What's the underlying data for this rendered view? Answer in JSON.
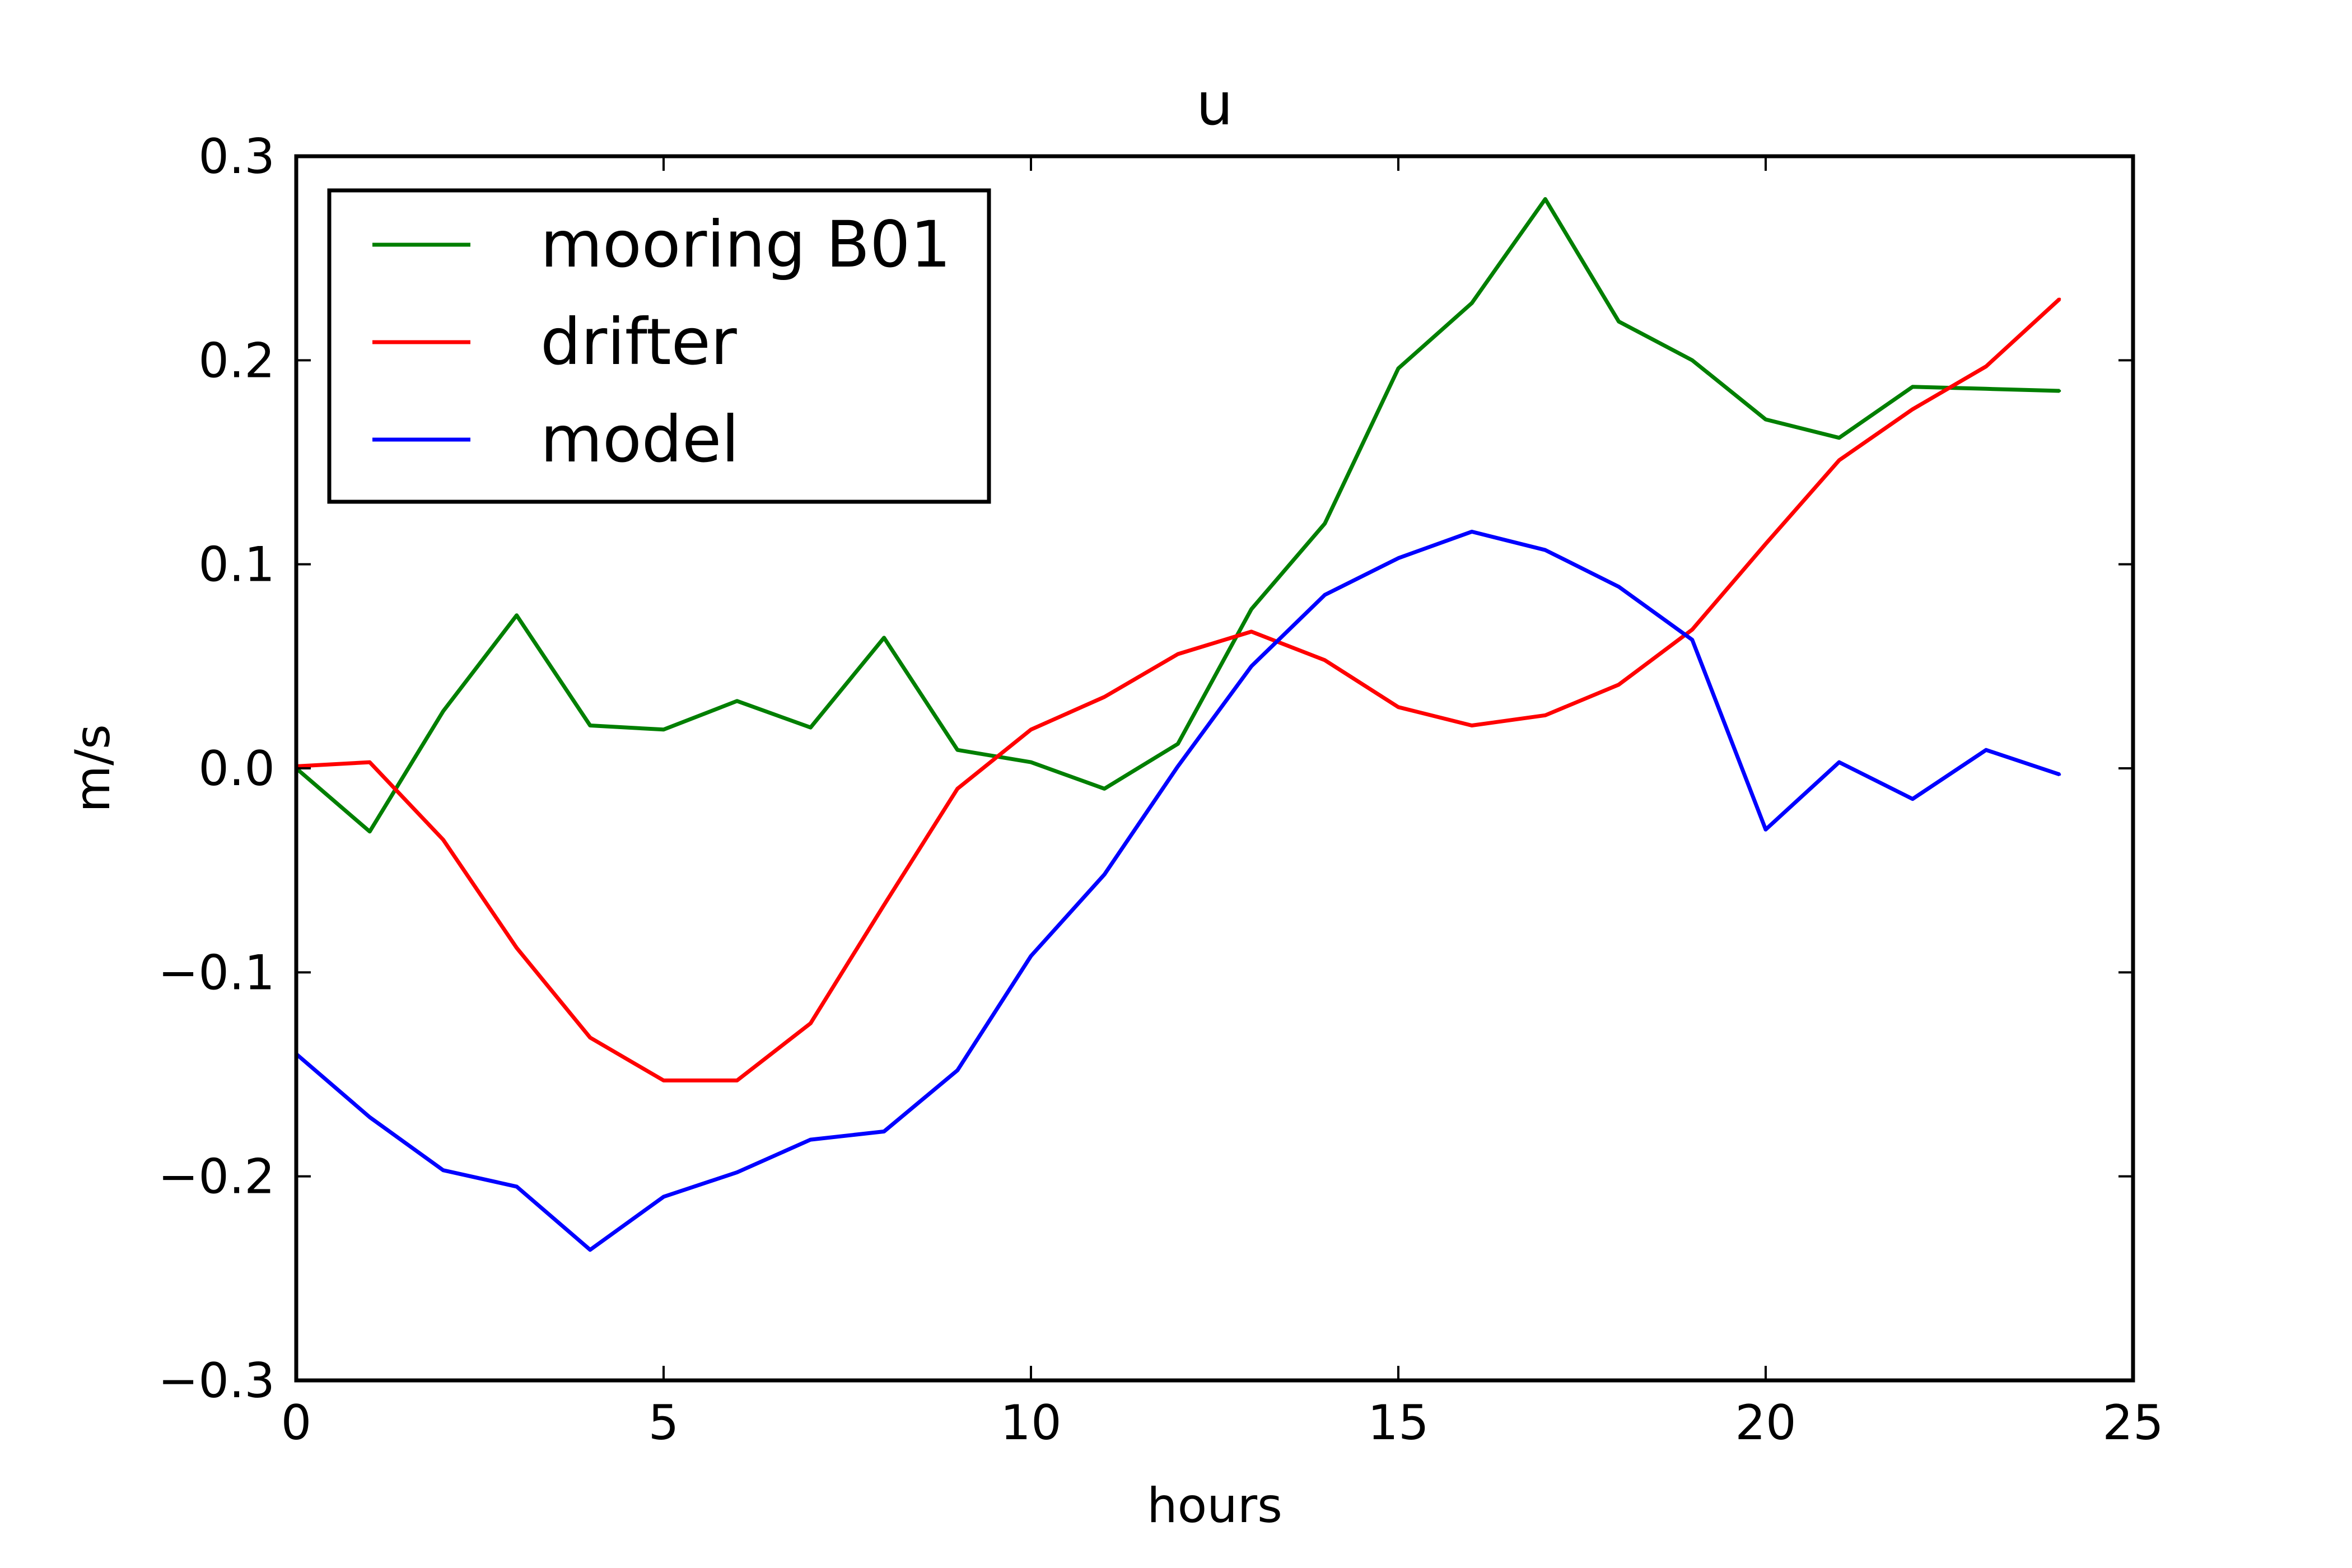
{
  "chart_data": {
    "type": "line",
    "title": "u",
    "xlabel": "hours",
    "ylabel": "m/s",
    "xlim": [
      0,
      25
    ],
    "ylim": [
      -0.3,
      0.3
    ],
    "xticks": [
      0,
      5,
      10,
      15,
      20,
      25
    ],
    "xtick_labels": [
      "0",
      "5",
      "10",
      "15",
      "20",
      "25"
    ],
    "yticks": [
      -0.3,
      -0.2,
      -0.1,
      0.0,
      0.1,
      0.2,
      0.3
    ],
    "ytick_labels": [
      "−0.3",
      "−0.2",
      "−0.1",
      "0.0",
      "0.1",
      "0.2",
      "0.3"
    ],
    "grid": false,
    "legend_position": "top-left",
    "x": [
      0,
      1,
      2,
      3,
      4,
      5,
      6,
      7,
      8,
      9,
      10,
      11,
      12,
      13,
      14,
      15,
      16,
      17,
      18,
      19,
      20,
      21,
      22,
      23,
      24
    ],
    "series": [
      {
        "name": "mooring B01",
        "color": "#007f00",
        "values": [
          0.0,
          -0.031,
          0.028,
          0.075,
          0.021,
          0.019,
          0.033,
          0.02,
          0.064,
          0.009,
          0.003,
          -0.01,
          0.012,
          0.078,
          0.12,
          0.196,
          0.228,
          0.279,
          0.219,
          0.2,
          0.171,
          0.162,
          0.187,
          0.186,
          0.185
        ]
      },
      {
        "name": "drifter",
        "color": "#ff0000",
        "values": [
          0.001,
          0.003,
          -0.035,
          -0.088,
          -0.132,
          -0.153,
          -0.153,
          -0.125,
          -0.067,
          -0.01,
          0.019,
          0.035,
          0.056,
          0.067,
          0.053,
          0.03,
          0.021,
          0.026,
          0.041,
          0.068,
          0.11,
          0.151,
          0.176,
          0.197,
          0.23
        ]
      },
      {
        "name": "model",
        "color": "#0000ff",
        "values": [
          -0.14,
          -0.171,
          -0.197,
          -0.205,
          -0.236,
          -0.21,
          -0.198,
          -0.182,
          -0.178,
          -0.148,
          -0.092,
          -0.052,
          0.001,
          0.05,
          0.085,
          0.103,
          0.116,
          0.107,
          0.089,
          0.063,
          -0.03,
          0.003,
          -0.015,
          0.009,
          -0.003
        ]
      }
    ]
  }
}
